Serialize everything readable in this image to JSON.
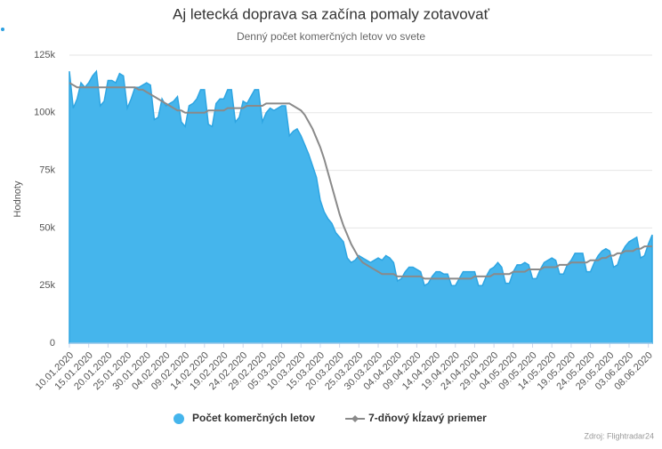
{
  "chart_data": {
    "type": "area",
    "title": "Aj letecká doprava sa začína pomaly zotavovať",
    "subtitle": "Denný počet komerčných letov vo svete",
    "y_label": "Hodnoty",
    "source": "Zdroj: Flightradar24",
    "ylim": [
      0,
      125
    ],
    "yticks": [
      0,
      {
        "value": 25,
        "label": "25k"
      },
      {
        "value": 50,
        "label": "50k"
      },
      {
        "value": 75,
        "label": "75k"
      },
      {
        "value": 100,
        "label": "100k"
      },
      {
        "value": 125,
        "label": "125k"
      }
    ],
    "grid": true,
    "legend": "bottom",
    "categories": [
      "10.01.2020",
      null,
      null,
      null,
      null,
      "15.01.2020",
      null,
      null,
      null,
      null,
      "20.01.2020",
      null,
      null,
      null,
      null,
      "25.01.2020",
      null,
      null,
      null,
      null,
      "30.01.2020",
      null,
      null,
      null,
      null,
      "04.02.2020",
      null,
      null,
      null,
      null,
      "09.02.2020",
      null,
      null,
      null,
      null,
      "14.02.2020",
      null,
      null,
      null,
      null,
      "19.02.2020",
      null,
      null,
      null,
      null,
      "24.02.2020",
      null,
      null,
      null,
      null,
      "29.02.2020",
      null,
      null,
      null,
      null,
      "05.03.2020",
      null,
      null,
      null,
      null,
      "10.03.2020",
      null,
      null,
      null,
      null,
      "15.03.2020",
      null,
      null,
      null,
      null,
      "20.03.2020",
      null,
      null,
      null,
      null,
      "25.03.2020",
      null,
      null,
      null,
      null,
      "30.03.2020",
      null,
      null,
      null,
      null,
      "04.04.2020",
      null,
      null,
      null,
      null,
      "09.04.2020",
      null,
      null,
      null,
      null,
      "14.04.2020",
      null,
      null,
      null,
      null,
      "19.04.2020",
      null,
      null,
      null,
      null,
      "24.04.2020",
      null,
      null,
      null,
      null,
      "29.04.2020",
      null,
      null,
      null,
      null,
      "04.05.2020",
      null,
      null,
      null,
      null,
      "09.05.2020",
      null,
      null,
      null,
      null,
      "14.05.2020",
      null,
      null,
      null,
      null,
      "19.05.2020",
      null,
      null,
      null,
      null,
      "24.05.2020",
      null,
      null,
      null,
      null,
      "29.05.2020",
      null,
      null,
      null,
      null,
      "03.06.2020",
      null,
      null,
      null,
      null,
      "08.06.2020",
      null
    ],
    "series": [
      {
        "name": "Počet komerčných letov",
        "type": "area",
        "color": "#45b5ec",
        "values": [
          118,
          102,
          106,
          113,
          111,
          113,
          116,
          118,
          103,
          105,
          114,
          114,
          113,
          117,
          116,
          102,
          106,
          111,
          111,
          112,
          113,
          112,
          97,
          98,
          106,
          103,
          104,
          105,
          107,
          96,
          94,
          103,
          104,
          106,
          110,
          110,
          95,
          94,
          104,
          106,
          106,
          110,
          110,
          96,
          98,
          105,
          104,
          107,
          110,
          110,
          96,
          100,
          102,
          101,
          102,
          103,
          103,
          90,
          92,
          93,
          90,
          86,
          82,
          77,
          72,
          62,
          57,
          54,
          52,
          48,
          46,
          44,
          37,
          35,
          36,
          38,
          37,
          36,
          35,
          36,
          37,
          36,
          38,
          37,
          35,
          27,
          28,
          31,
          33,
          33,
          32,
          31,
          25,
          26,
          29,
          31,
          31,
          30,
          30,
          25,
          25,
          28,
          31,
          31,
          31,
          31,
          25,
          25,
          29,
          32,
          33,
          35,
          33,
          26,
          26,
          31,
          34,
          34,
          35,
          34,
          28,
          28,
          32,
          35,
          36,
          37,
          36,
          30,
          30,
          34,
          36,
          39,
          39,
          39,
          31,
          31,
          35,
          38,
          40,
          41,
          40,
          33,
          34,
          39,
          42,
          44,
          45,
          46,
          37,
          38,
          43,
          47
        ]
      },
      {
        "name": "7-dňový kĺzavý priemer",
        "type": "line",
        "color": "#8a8a8a",
        "values": [
          113,
          112,
          111,
          111,
          111,
          111,
          111,
          111,
          111,
          111,
          111,
          111,
          111,
          111,
          111,
          111,
          111,
          111,
          110,
          110,
          109,
          108,
          107,
          106,
          105,
          104,
          103,
          102,
          101,
          101,
          100,
          100,
          100,
          100,
          100,
          100,
          101,
          101,
          101,
          101,
          101,
          102,
          102,
          102,
          102,
          102,
          103,
          103,
          103,
          103,
          103,
          104,
          104,
          104,
          104,
          104,
          104,
          104,
          103,
          102,
          101,
          99,
          96,
          93,
          89,
          85,
          80,
          74,
          68,
          62,
          56,
          51,
          47,
          43,
          40,
          37,
          35,
          34,
          33,
          32,
          31,
          30,
          30,
          30,
          30,
          29,
          29,
          29,
          29,
          29,
          29,
          29,
          28,
          28,
          28,
          28,
          28,
          28,
          28,
          28,
          28,
          28,
          28,
          28,
          28,
          29,
          29,
          29,
          29,
          29,
          30,
          30,
          30,
          30,
          30,
          31,
          31,
          31,
          31,
          32,
          32,
          32,
          32,
          33,
          33,
          33,
          33,
          34,
          34,
          34,
          35,
          35,
          35,
          35,
          35,
          36,
          36,
          36,
          37,
          37,
          38,
          38,
          39,
          39,
          40,
          40,
          40,
          41,
          41,
          42,
          42,
          42
        ]
      }
    ]
  }
}
